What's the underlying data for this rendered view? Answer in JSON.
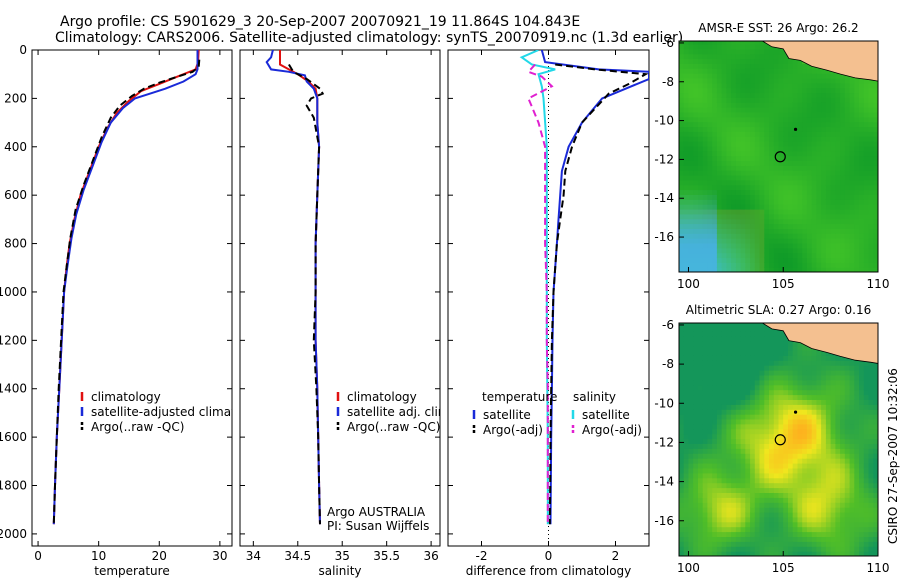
{
  "header": {
    "line1": "Argo profile: CS 5901629_3 20-Sep-2007 20070921_19 11.864S 104.843E",
    "line2": "Climatology: CARS2006. Satellite-adjusted climatology: synTS_20070919.nc (1.3d earlier)"
  },
  "credit": "CSIRO 27-Sep-2007 10:32:06",
  "colors": {
    "climatology": "#e01010",
    "satellite": "#1a2ad8",
    "argo": "#000000",
    "satellite_salinity": "#22d8e8",
    "argo_adj_salinity": "#e020d0",
    "land": "#f4c090"
  },
  "chart_data": [
    {
      "type": "line",
      "id": "temperature",
      "xlabel": "temperature",
      "ylabel": "",
      "xlim": [
        -1,
        32
      ],
      "ylim": [
        2050,
        0
      ],
      "xticks": [
        0,
        10,
        20,
        30
      ],
      "xtick_labels": [
        "0",
        "10",
        "20",
        "30"
      ],
      "yticks": [
        0,
        200,
        400,
        600,
        800,
        1000,
        1200,
        1400,
        1600,
        1800,
        2000
      ],
      "ytick_labels": [
        "0",
        "200",
        "400",
        "600",
        "800",
        "1000",
        "1200",
        "1400",
        "1600",
        "1800",
        "2000"
      ],
      "legend": [
        "climatology",
        "satellite-adjusted climatology",
        "Argo(..raw -QC)"
      ],
      "series": [
        {
          "name": "climatology",
          "points": [
            [
              26.5,
              0
            ],
            [
              26.4,
              50
            ],
            [
              26.0,
              80
            ],
            [
              23.0,
              110
            ],
            [
              20.0,
              140
            ],
            [
              17.0,
              170
            ],
            [
              15.0,
              210
            ],
            [
              13.0,
              260
            ],
            [
              11.5,
              320
            ],
            [
              10.0,
              400
            ],
            [
              8.5,
              500
            ],
            [
              7.0,
              600
            ],
            [
              6.0,
              700
            ],
            [
              5.2,
              800
            ],
            [
              4.7,
              900
            ],
            [
              4.3,
              1000
            ],
            [
              3.9,
              1200
            ],
            [
              3.5,
              1400
            ],
            [
              3.1,
              1600
            ],
            [
              2.8,
              1800
            ],
            [
              2.6,
              1960
            ]
          ]
        },
        {
          "name": "satellite-adjusted climatology",
          "points": [
            [
              26.3,
              0
            ],
            [
              26.3,
              80
            ],
            [
              26.0,
              100
            ],
            [
              24.0,
              130
            ],
            [
              21.0,
              160
            ],
            [
              18.5,
              180
            ],
            [
              16.0,
              200
            ],
            [
              14.0,
              240
            ],
            [
              12.0,
              300
            ],
            [
              10.5,
              380
            ],
            [
              9.0,
              480
            ],
            [
              7.5,
              580
            ],
            [
              6.3,
              680
            ],
            [
              5.5,
              780
            ],
            [
              4.8,
              900
            ],
            [
              4.3,
              1000
            ],
            [
              3.9,
              1200
            ],
            [
              3.5,
              1400
            ],
            [
              3.1,
              1600
            ],
            [
              2.8,
              1800
            ],
            [
              2.6,
              1960
            ]
          ]
        },
        {
          "name": "Argo(..raw -QC)",
          "points": [
            [
              26.6,
              40
            ],
            [
              26.5,
              70
            ],
            [
              25.5,
              90
            ],
            [
              23.0,
              110
            ],
            [
              20.0,
              135
            ],
            [
              17.5,
              160
            ],
            [
              15.5,
              190
            ],
            [
              13.5,
              230
            ],
            [
              12.0,
              280
            ],
            [
              10.5,
              360
            ],
            [
              9.0,
              460
            ],
            [
              7.5,
              560
            ],
            [
              6.2,
              660
            ],
            [
              5.3,
              780
            ],
            [
              4.7,
              900
            ],
            [
              4.2,
              1000
            ],
            [
              3.8,
              1200
            ],
            [
              3.4,
              1400
            ],
            [
              3.1,
              1600
            ],
            [
              2.8,
              1800
            ],
            [
              2.6,
              1960
            ]
          ]
        }
      ]
    },
    {
      "type": "line",
      "id": "salinity",
      "xlabel": "salinity",
      "ylabel": "",
      "xlim": [
        33.85,
        36.1
      ],
      "ylim": [
        2050,
        0
      ],
      "xticks": [
        34,
        34.5,
        35,
        35.5,
        36
      ],
      "xtick_labels": [
        "34",
        "34.5",
        "35",
        "35.5",
        "36"
      ],
      "legend": [
        "climatology",
        "satellite adj. clim.",
        "Argo(..raw -QC)"
      ],
      "annotation": [
        "Argo AUSTRALIA",
        "PI: Susan Wijffels"
      ],
      "series": [
        {
          "name": "climatology",
          "points": [
            [
              34.3,
              0
            ],
            [
              34.3,
              40
            ],
            [
              34.3,
              60
            ],
            [
              34.4,
              80
            ],
            [
              34.5,
              100
            ],
            [
              34.62,
              130
            ],
            [
              34.7,
              160
            ],
            [
              34.72,
              200
            ],
            [
              34.72,
              300
            ],
            [
              34.74,
              400
            ],
            [
              34.72,
              600
            ],
            [
              34.7,
              800
            ],
            [
              34.7,
              1000
            ],
            [
              34.7,
              1200
            ],
            [
              34.72,
              1400
            ],
            [
              34.73,
              1600
            ],
            [
              34.74,
              1800
            ],
            [
              34.75,
              1960
            ]
          ]
        },
        {
          "name": "satellite adj. clim.",
          "points": [
            [
              34.22,
              0
            ],
            [
              34.2,
              30
            ],
            [
              34.15,
              50
            ],
            [
              34.2,
              80
            ],
            [
              34.4,
              90
            ],
            [
              34.58,
              105
            ],
            [
              34.6,
              130
            ],
            [
              34.68,
              160
            ],
            [
              34.72,
              200
            ],
            [
              34.72,
              300
            ],
            [
              34.74,
              400
            ],
            [
              34.72,
              600
            ],
            [
              34.7,
              800
            ],
            [
              34.7,
              1000
            ],
            [
              34.7,
              1200
            ],
            [
              34.72,
              1400
            ],
            [
              34.73,
              1600
            ],
            [
              34.74,
              1800
            ],
            [
              34.75,
              1960
            ]
          ]
        },
        {
          "name": "Argo(..raw -QC)",
          "points": [
            [
              34.4,
              60
            ],
            [
              34.45,
              90
            ],
            [
              34.6,
              120
            ],
            [
              34.75,
              160
            ],
            [
              34.78,
              180
            ],
            [
              34.65,
              200
            ],
            [
              34.6,
              230
            ],
            [
              34.68,
              280
            ],
            [
              34.74,
              400
            ],
            [
              34.72,
              600
            ],
            [
              34.7,
              800
            ],
            [
              34.7,
              1000
            ],
            [
              34.68,
              1200
            ],
            [
              34.71,
              1400
            ],
            [
              34.73,
              1600
            ],
            [
              34.74,
              1800
            ],
            [
              34.75,
              1960
            ]
          ]
        }
      ]
    },
    {
      "type": "line",
      "id": "difference",
      "xlabel": "difference from climatology",
      "ylabel": "",
      "xlim": [
        -3,
        3
      ],
      "ylim": [
        2050,
        0
      ],
      "xticks": [
        -2,
        0,
        2
      ],
      "xtick_labels": [
        "-2",
        "0",
        "2"
      ],
      "legend_columns": [
        {
          "header": "temperature",
          "items": [
            "satellite",
            "Argo(-adj)"
          ]
        },
        {
          "header": "salinity",
          "items": [
            "satellite",
            "Argo(-adj)"
          ]
        }
      ],
      "series": [
        {
          "name": "temperature satellite",
          "points": [
            [
              -0.2,
              0
            ],
            [
              -0.1,
              50
            ],
            [
              1.5,
              80
            ],
            [
              3.0,
              90
            ],
            [
              3.0,
              120
            ],
            [
              1.6,
              200
            ],
            [
              1.0,
              300
            ],
            [
              0.6,
              400
            ],
            [
              0.4,
              500
            ],
            [
              0.35,
              600
            ],
            [
              0.3,
              700
            ],
            [
              0.25,
              800
            ],
            [
              0.2,
              900
            ],
            [
              0.15,
              1000
            ],
            [
              0.12,
              1200
            ],
            [
              0.1,
              1400
            ],
            [
              0.08,
              1600
            ],
            [
              0.07,
              1800
            ],
            [
              0.06,
              1960
            ]
          ]
        },
        {
          "name": "temperature Argo(-adj)",
          "points": [
            [
              0.2,
              60
            ],
            [
              1.4,
              80
            ],
            [
              2.9,
              100
            ],
            [
              2.4,
              140
            ],
            [
              1.8,
              180
            ],
            [
              1.4,
              240
            ],
            [
              1.0,
              300
            ],
            [
              0.7,
              400
            ],
            [
              0.5,
              500
            ],
            [
              0.45,
              600
            ],
            [
              0.35,
              700
            ],
            [
              0.25,
              800
            ],
            [
              0.15,
              1000
            ],
            [
              0.1,
              1200
            ],
            [
              0.08,
              1400
            ],
            [
              0.06,
              1600
            ],
            [
              0.05,
              1800
            ],
            [
              0.04,
              1960
            ]
          ]
        },
        {
          "name": "salinity satellite",
          "points": [
            [
              -0.3,
              0
            ],
            [
              -0.8,
              30
            ],
            [
              -0.5,
              60
            ],
            [
              0.2,
              80
            ],
            [
              -0.3,
              100
            ],
            [
              -0.2,
              150
            ],
            [
              -0.15,
              200
            ],
            [
              -0.05,
              400
            ],
            [
              -0.05,
              800
            ],
            [
              -0.05,
              1200
            ],
            [
              -0.02,
              1600
            ],
            [
              -0.02,
              1800
            ],
            [
              -0.02,
              1960
            ]
          ]
        },
        {
          "name": "salinity Argo(-adj)",
          "points": [
            [
              -0.4,
              60
            ],
            [
              -0.6,
              90
            ],
            [
              -0.2,
              110
            ],
            [
              0.1,
              150
            ],
            [
              -0.6,
              200
            ],
            [
              -0.3,
              300
            ],
            [
              -0.1,
              400
            ],
            [
              -0.1,
              600
            ],
            [
              -0.1,
              800
            ],
            [
              -0.05,
              1000
            ],
            [
              -0.05,
              1200
            ],
            [
              -0.02,
              1400
            ],
            [
              -0.02,
              1600
            ],
            [
              -0.02,
              1800
            ],
            [
              -0.02,
              1960
            ]
          ]
        }
      ]
    },
    {
      "type": "heatmap",
      "id": "sst_map",
      "title": "AMSR-E SST: 26 Argo: 26.2",
      "xlim": [
        99.5,
        110
      ],
      "ylim": [
        -17.8,
        -5.9
      ],
      "xticks": [
        100,
        105,
        110
      ],
      "xtick_labels": [
        "100",
        "105",
        "110"
      ],
      "yticks": [
        -6,
        -8,
        -10,
        -12,
        -14,
        -16
      ],
      "ytick_labels": [
        "-6",
        "-8",
        "-10",
        "-12",
        "-14",
        "-16"
      ],
      "argo_position": [
        104.843,
        -11.864
      ]
    },
    {
      "type": "heatmap",
      "id": "sla_map",
      "title": "Altimetric SLA: 0.27 Argo: 0.16",
      "xlim": [
        99.5,
        110
      ],
      "ylim": [
        -17.8,
        -5.9
      ],
      "xticks": [
        100,
        105,
        110
      ],
      "xtick_labels": [
        "100",
        "105",
        "110"
      ],
      "yticks": [
        -6,
        -8,
        -10,
        -12,
        -14,
        -16
      ],
      "ytick_labels": [
        "-6",
        "-8",
        "-10",
        "-12",
        "-14",
        "-16"
      ],
      "argo_position": [
        104.843,
        -11.864
      ]
    }
  ]
}
